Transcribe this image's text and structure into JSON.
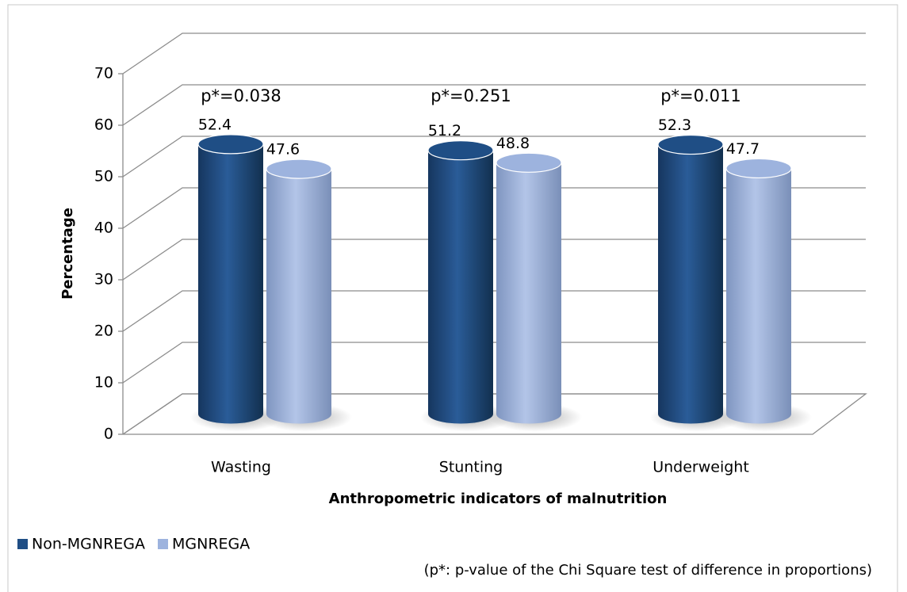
{
  "chart_data": {
    "type": "bar",
    "categories": [
      "Wasting",
      "Stunting",
      "Underweight"
    ],
    "series": [
      {
        "name": "Non-MGNREGA",
        "color": "#1f4e85",
        "values": [
          52.4,
          51.2,
          52.3
        ]
      },
      {
        "name": "MGNREGA",
        "color": "#9db3de",
        "values": [
          47.6,
          48.8,
          47.7
        ]
      }
    ],
    "ylim": [
      0,
      70
    ],
    "yticks": [
      0,
      10,
      20,
      30,
      40,
      50,
      60,
      70
    ],
    "grid": true,
    "xlabel": "Anthropometric indicators of malnutrition",
    "ylabel": "Percentage",
    "annotations": [
      "p*=0.038",
      "p*=0.251",
      "p*=0.011"
    ],
    "legend": "bottom-left",
    "note": "(p*: p-value of the Chi Square test of difference in proportions)"
  }
}
